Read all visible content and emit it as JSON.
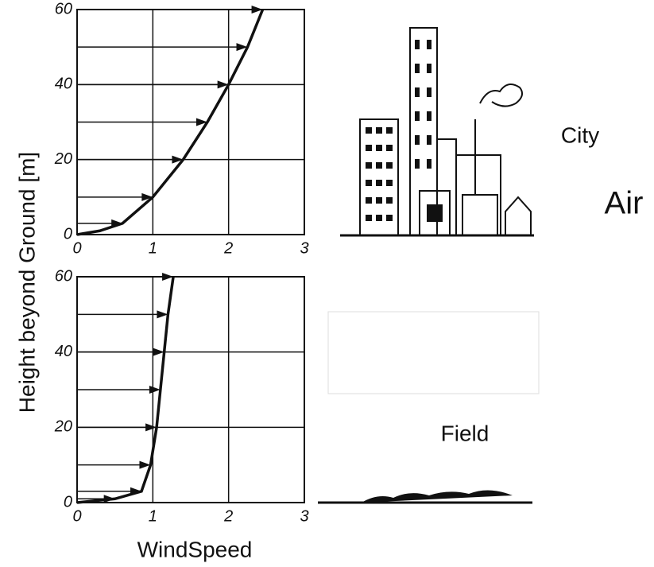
{
  "chart_data": [
    {
      "type": "line",
      "xlim": [
        0,
        3
      ],
      "ylim": [
        0,
        60
      ],
      "xticks": [
        0,
        1,
        2,
        3
      ],
      "yticks": [
        0,
        20,
        40,
        60
      ],
      "grid": true,
      "color": "#111111",
      "x": [
        0,
        0.3,
        0.6,
        1.0,
        1.4,
        1.72,
        2.0,
        2.25,
        2.45
      ],
      "values": [
        0,
        1,
        3,
        10,
        20,
        30,
        40,
        50,
        60
      ]
    },
    {
      "type": "line",
      "xlim": [
        0,
        3
      ],
      "ylim": [
        0,
        60
      ],
      "xticks": [
        0,
        1,
        2,
        3
      ],
      "yticks": [
        0,
        20,
        40,
        60
      ],
      "grid": true,
      "color": "#111111",
      "x": [
        0,
        0.5,
        0.85,
        0.97,
        1.05,
        1.1,
        1.15,
        1.2,
        1.27
      ],
      "values": [
        0,
        1,
        3,
        10,
        20,
        30,
        40,
        50,
        60
      ]
    }
  ],
  "ylabel": "Height beyond Ground [m]",
  "xlabel": "WindSpeed",
  "annotations": {
    "city": "City",
    "air": "Air",
    "field": "Field"
  }
}
